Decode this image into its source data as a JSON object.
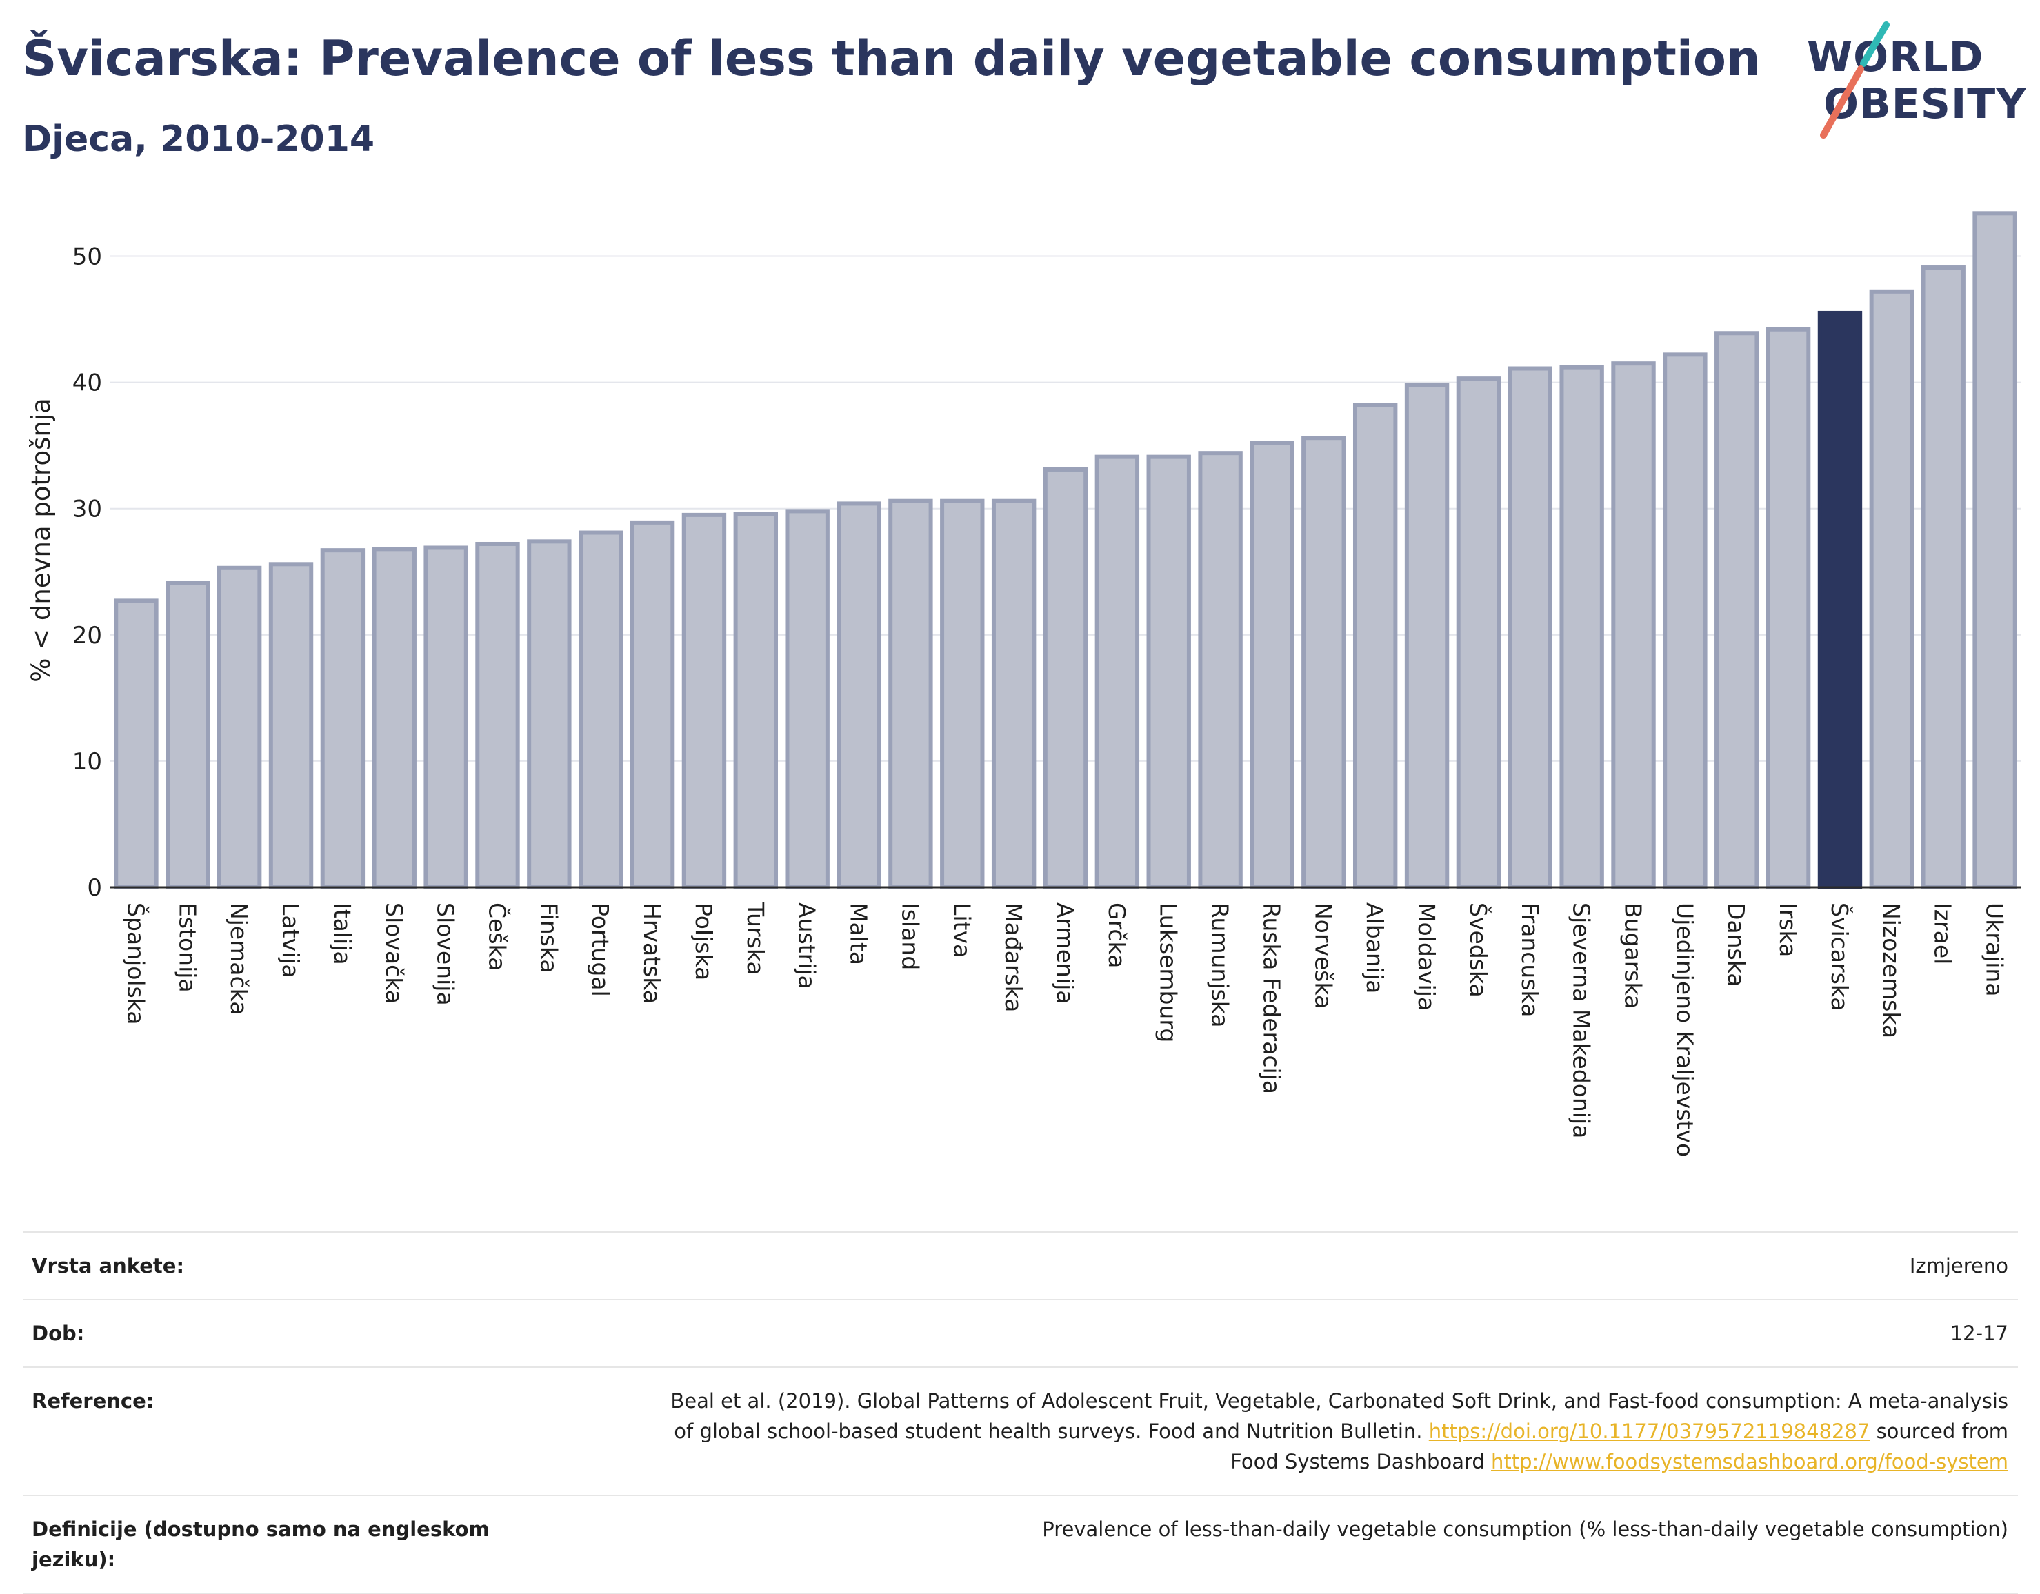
{
  "header": {
    "title": "Švicarska: Prevalence of less than daily vegetable consumption",
    "subtitle": "Djeca, 2010-2014",
    "logo_line1": "WORLD",
    "logo_line2": "OBESITY"
  },
  "colors": {
    "title": "#2b365e",
    "bar_default": "#bcc0cd",
    "bar_default_stroke": "#9aa1b8",
    "bar_highlight": "#2b365e",
    "logo_teal": "#2fb8b5",
    "logo_coral": "#e8705a",
    "link": "#e8b428"
  },
  "chart_data": {
    "type": "bar",
    "ylabel": "% < dnevna potrošnja",
    "xlabel": "",
    "ylim": [
      0,
      55
    ],
    "yticks": [
      0,
      10,
      20,
      30,
      40,
      50
    ],
    "grid": true,
    "highlight": "Švicarska",
    "categories": [
      "Španjolska",
      "Estonija",
      "Njemačka",
      "Latvija",
      "Italija",
      "Slovačka",
      "Slovenija",
      "Češka",
      "Finska",
      "Portugal",
      "Hrvatska",
      "Poljska",
      "Turska",
      "Austrija",
      "Malta",
      "Island",
      "Litva",
      "Mađarska",
      "Armenija",
      "Grčka",
      "Luksemburg",
      "Rumunjska",
      "Ruska Federacija",
      "Norveška",
      "Albanija",
      "Moldavija",
      "Švedska",
      "Francuska",
      "Sjeverna Makedonija",
      "Bugarska",
      "Ujedinjeno Kraljevstvo",
      "Danska",
      "Irska",
      "Švicarska",
      "Nizozemska",
      "Izrael",
      "Ukrajina"
    ],
    "values": [
      22.7,
      24.1,
      25.3,
      25.6,
      26.7,
      26.8,
      26.9,
      27.2,
      27.4,
      28.1,
      28.9,
      29.5,
      29.6,
      29.8,
      30.4,
      30.6,
      30.6,
      30.6,
      33.1,
      34.1,
      34.1,
      34.4,
      35.2,
      35.6,
      38.2,
      39.8,
      40.3,
      41.1,
      41.2,
      41.5,
      42.2,
      43.9,
      44.2,
      45.5,
      47.2,
      49.1,
      53.4
    ]
  },
  "info": {
    "rows": [
      {
        "key": "Vrsta ankete:",
        "value": "Izmjereno"
      },
      {
        "key": "Dob:",
        "value": "12-17"
      },
      {
        "key": "Reference:",
        "value_line1": "Beal et al. (2019). Global Patterns of Adolescent Fruit, Vegetable, Carbonated Soft Drink, and Fast-food consumption: A meta-analysis",
        "value_line2_pre": "of global school-based student health surveys. Food and Nutrition Bulletin.",
        "link1": "https://doi.org/10.1177/0379572119848287",
        "value_line2_post": "sourced from",
        "value_line3_pre": "Food Systems Dashboard",
        "link2": "http://www.foodsystemsdashboard.org/food-system"
      },
      {
        "key": "Definicije (dostupno samo na engleskom jeziku):",
        "value": "Prevalence of less-than-daily vegetable consumption (% less-than-daily vegetable consumption)"
      }
    ]
  }
}
